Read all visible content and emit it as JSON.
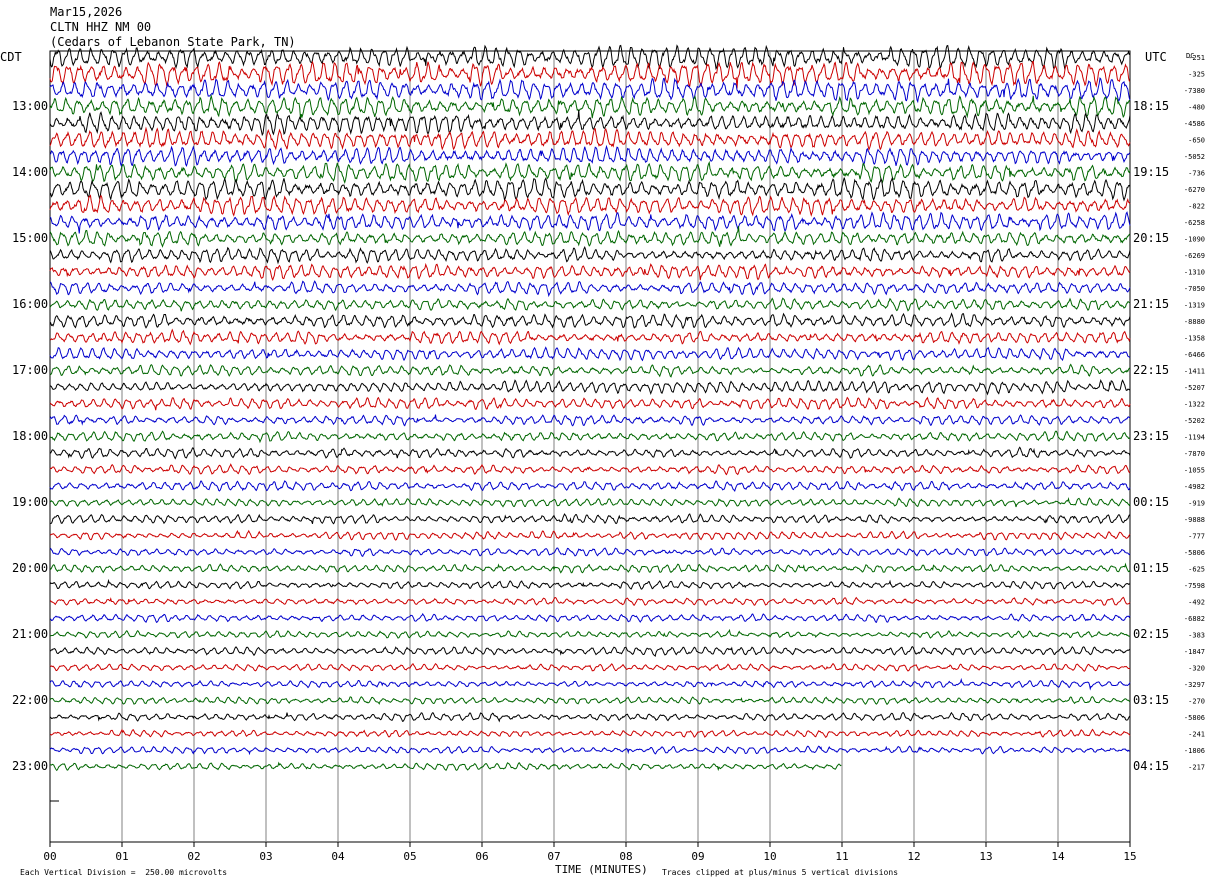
{
  "header": {
    "date": "Mar15,2026",
    "station": "CLTN HHZ NM 00",
    "location": "(Cedars of Lebanon State Park, TN)"
  },
  "left_timezone": "CDT",
  "right_timezone": "UTC",
  "dc_header": "DC",
  "footer": {
    "scale_note": "Each Vertical Division =  250.00 microvolts",
    "xlabel": "TIME (MINUTES)",
    "clip_note": "Traces clipped at plus/minus 5 vertical divisions"
  },
  "colors": {
    "trace_cycle": [
      "#000000",
      "#cc0000",
      "#0000cc",
      "#006600"
    ],
    "grid": "#808080",
    "text": "#000000"
  },
  "chart_data": {
    "type": "line",
    "subtype": "helicorder",
    "xlabel": "TIME (MINUTES)",
    "xlim": [
      0,
      15
    ],
    "x_ticks": [
      "00",
      "01",
      "02",
      "03",
      "04",
      "05",
      "06",
      "07",
      "08",
      "09",
      "10",
      "11",
      "12",
      "13",
      "14",
      "15"
    ],
    "minutes_per_line": 15,
    "left_hour_labels": [
      "13:00",
      "14:00",
      "15:00",
      "16:00",
      "17:00",
      "18:00",
      "19:00",
      "20:00",
      "21:00",
      "22:00",
      "23:00"
    ],
    "right_hour_labels": [
      "18:15",
      "19:15",
      "20:15",
      "21:15",
      "22:15",
      "23:15",
      "00:15",
      "01:15",
      "02:15",
      "03:15",
      "04:15"
    ],
    "dc_offsets": [
      "-251",
      "-325",
      "-7380",
      "-480",
      "-4586",
      "-650",
      "-5052",
      "-736",
      "-6270",
      "-822",
      "-6258",
      "-1090",
      "-6269",
      "-1310",
      "-7050",
      "-1319",
      "-8880",
      "-1358",
      "-6466",
      "-1411",
      "-5207",
      "-1322",
      "-5202",
      "-1194",
      "-7870",
      "-1055",
      "-4982",
      "-919",
      "-9888",
      "-777",
      "-5806",
      "-625",
      "-7598",
      "-492",
      "-6882",
      "-383",
      "-1847",
      "-320",
      "-3297",
      "-270",
      "-5806",
      "-241",
      "-1806",
      "-217"
    ],
    "full_traces": 43,
    "last_trace_fraction": 0.733,
    "trace_amplitude_profile": [
      2.2,
      2.4,
      2.2,
      2.0,
      2.1,
      2.0,
      1.9,
      1.8,
      2.0,
      1.9,
      1.7,
      1.5,
      1.4,
      1.5,
      1.3,
      1.2,
      1.4,
      1.3,
      1.2,
      1.1,
      1.2,
      1.1,
      1.0,
      1.0,
      1.0,
      0.9,
      0.9,
      0.8,
      0.9,
      0.8,
      0.8,
      0.8,
      0.8,
      0.8,
      0.8,
      0.7,
      0.8,
      0.7,
      0.7,
      0.7,
      0.8,
      0.7,
      0.7,
      0.7
    ],
    "grid": true,
    "legend": "none"
  }
}
